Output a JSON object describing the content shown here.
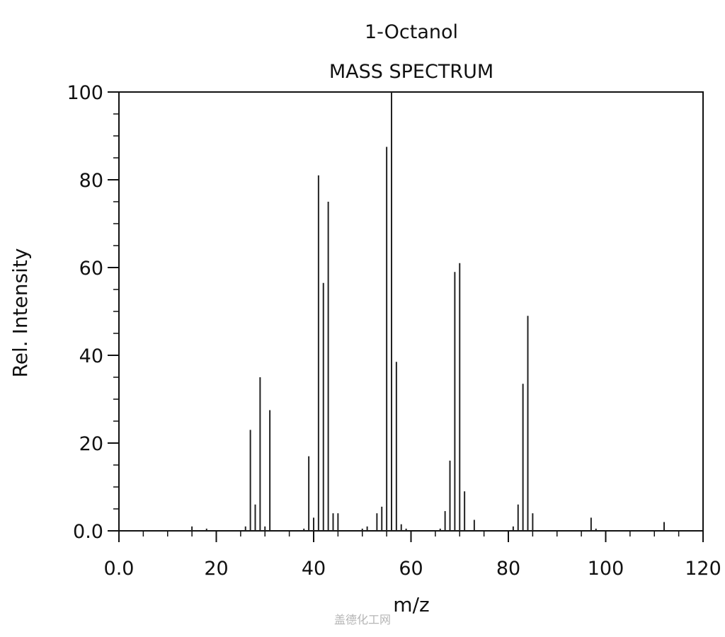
{
  "chart_data": {
    "type": "bar",
    "title": "1-Octanol",
    "subtitle": "MASS SPECTRUM",
    "xlabel": "m/z",
    "ylabel": "Rel. Intensity",
    "xlim": [
      0,
      120
    ],
    "ylim": [
      0,
      100
    ],
    "xticks": [
      0,
      20,
      40,
      60,
      80,
      100,
      120
    ],
    "xtick_labels": [
      "0.0",
      "20",
      "40",
      "60",
      "80",
      "100",
      "120"
    ],
    "yticks": [
      0,
      20,
      40,
      60,
      80,
      100
    ],
    "ytick_labels": [
      "0.0",
      "20",
      "40",
      "60",
      "80",
      "100"
    ],
    "grid": false,
    "series": [
      {
        "x": [
          15,
          18,
          26,
          27,
          28,
          29,
          30,
          31,
          38,
          39,
          40,
          41,
          42,
          43,
          44,
          45,
          50,
          51,
          53,
          54,
          55,
          56,
          57,
          58,
          59,
          66,
          67,
          68,
          69,
          70,
          71,
          73,
          81,
          82,
          83,
          84,
          85,
          97,
          98,
          112
        ],
        "values": [
          1,
          0.5,
          1,
          23,
          6,
          35,
          1,
          27.5,
          0.5,
          17,
          3,
          81,
          56.5,
          75,
          4,
          4,
          0.5,
          1,
          4,
          5.5,
          87.5,
          100,
          38.5,
          1.5,
          0.5,
          0.5,
          4.5,
          16,
          59,
          61,
          9,
          2.5,
          1,
          6,
          33.5,
          49,
          4,
          3,
          0.5,
          2
        ]
      }
    ],
    "watermark": "盖德化工网"
  }
}
